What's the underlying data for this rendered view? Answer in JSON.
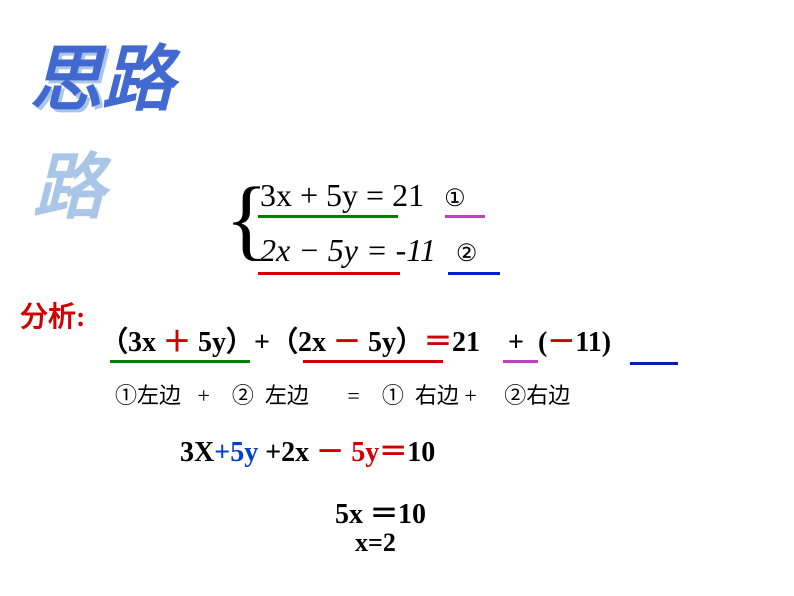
{
  "title": "思路",
  "system": {
    "eq1_lhs_a": "3x",
    "eq1_lhs_b": " + 5y",
    "eq1_eq": " = ",
    "eq1_rhs": "21",
    "eq1_mark": "①",
    "eq2_lhs_a": "2x",
    "eq2_lhs_b": " − 5y",
    "eq2_eq": " = ",
    "eq2_rhs": "-11",
    "eq2_mark": "②"
  },
  "analysis_label": "分析:",
  "line3": {
    "p1": "（",
    "p2": "3x",
    "p3": " ＋ ",
    "p4": "5y",
    "p5": "）+（",
    "p6": "2x",
    "p7": " － ",
    "p8": "5y",
    "p9": "）",
    "p10": "＝",
    "p11": "21",
    "p12": "    +  (",
    "p13": "－",
    "p14": "11)"
  },
  "line4": "①左边   +    ②  左边       =    ①  右边 +     ②右边",
  "line5": {
    "a": "3X",
    "b": "+5y",
    "c": " +2x ",
    "d": "－",
    "e": " 5y",
    "f": "＝",
    "g": "10"
  },
  "line6": "5x ＝10",
  "line7": "x=2",
  "colors": {
    "title_main": "#4169d1",
    "title_shadow": "#a9c5e8",
    "red": "#d00000",
    "blue": "#0040d0",
    "green": "#008000",
    "purple": "#c040c0",
    "dblue": "#0020c0",
    "black": "#000000",
    "bg": "#ffffff"
  }
}
